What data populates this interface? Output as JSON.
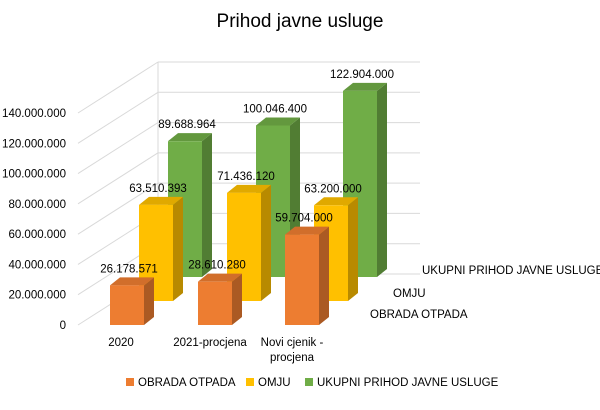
{
  "chart_data": {
    "type": "bar",
    "title": "Prihod javne usluge",
    "categories": [
      "2020",
      "2021-procjena",
      "Novi cjenik - procjena"
    ],
    "series": [
      {
        "name": "OBRADA OTPADA",
        "values": [
          26178571,
          28610280,
          59704000
        ],
        "color": "#ED7D31",
        "label_values": [
          "26.178.571",
          "28.610.280",
          "59.704.000"
        ]
      },
      {
        "name": "OMJU",
        "values": [
          63510393,
          71436120,
          63200000
        ],
        "color": "#FFC000",
        "label_values": [
          "63.510.393",
          "71.436.120",
          "63.200.000"
        ]
      },
      {
        "name": "UKUPNI PRIHOD JAVNE USLUGE",
        "values": [
          89688964,
          100046400,
          122904000
        ],
        "color": "#70AD47",
        "label_values": [
          "89.688.964",
          "100.046.400",
          "122.904.000"
        ]
      }
    ],
    "ylim": [
      0,
      140000000
    ],
    "yticks": [
      "0",
      "20.000.000",
      "40.000.000",
      "60.000.000",
      "80.000.000",
      "100.000.000",
      "120.000.000",
      "140.000.000"
    ],
    "grid": true,
    "legend": "bottom"
  }
}
